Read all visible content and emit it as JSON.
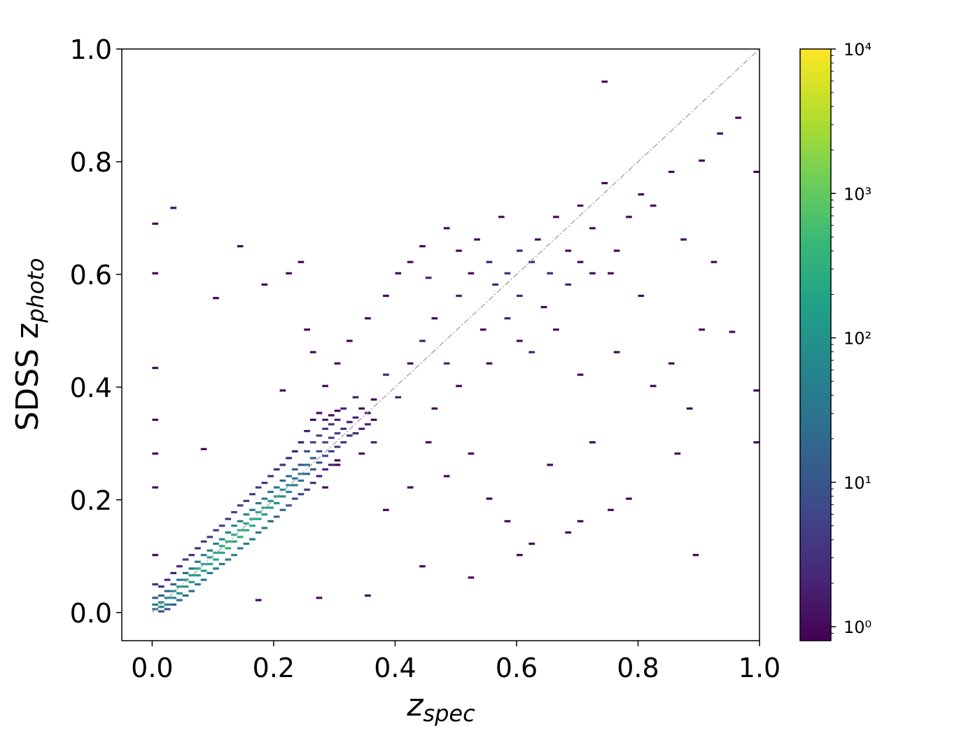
{
  "chart_data": {
    "type": "hist2d",
    "xlabel": {
      "main": "z",
      "sub": "spec"
    },
    "ylabel": {
      "main": "SDSS z",
      "sub": "photo"
    },
    "xlim": [
      -0.05,
      1.0
    ],
    "ylim": [
      -0.05,
      1.0
    ],
    "xticks": [
      {
        "value": 0,
        "label": "0.0"
      },
      0.2,
      0.4,
      0.6,
      0.8,
      {
        "value": 1,
        "label": "1.0"
      }
    ],
    "yticks": [
      {
        "value": 0,
        "label": "0.0"
      },
      0.2,
      0.4,
      0.6,
      0.8,
      {
        "value": 1,
        "label": "1.0"
      }
    ],
    "bin_width": [
      0.01,
      0.004
    ],
    "log_color": true,
    "clim": [
      0.8,
      10000
    ],
    "cticks": [
      {
        "value": 1,
        "label": "10⁰"
      },
      {
        "value": 10,
        "label": "10¹"
      },
      {
        "value": 100,
        "label": "10²"
      },
      {
        "value": 1000,
        "label": "10³"
      },
      {
        "value": 10000,
        "label": "10⁴"
      }
    ],
    "colormap": [
      "#440154",
      "#482878",
      "#3e4989",
      "#31688e",
      "#26828e",
      "#1f9e89",
      "#35b779",
      "#6ece58",
      "#b5de2b",
      "#fde725"
    ],
    "diagonal": {
      "from": [
        0,
        0
      ],
      "to": [
        1,
        1
      ],
      "color": "#999999"
    },
    "cells": [
      [
        0,
        0.004,
        30
      ],
      [
        0,
        0.012,
        40
      ],
      [
        0,
        0.024,
        12
      ],
      [
        0,
        0.048,
        3
      ],
      [
        0,
        0.1,
        1
      ],
      [
        0.01,
        0.008,
        50
      ],
      [
        0.01,
        0.016,
        60
      ],
      [
        0.01,
        0.028,
        15
      ],
      [
        0.01,
        0.044,
        3
      ],
      [
        0.01,
        0,
        8
      ],
      [
        0.02,
        0.012,
        60
      ],
      [
        0.02,
        0.024,
        80
      ],
      [
        0.02,
        0.036,
        20
      ],
      [
        0.02,
        0.056,
        2
      ],
      [
        0.02,
        0.004,
        10
      ],
      [
        0.03,
        0.024,
        80
      ],
      [
        0.03,
        0.036,
        90
      ],
      [
        0.03,
        0.048,
        20
      ],
      [
        0.03,
        0.012,
        15
      ],
      [
        0.03,
        0.068,
        2
      ],
      [
        0.04,
        0.032,
        100
      ],
      [
        0.04,
        0.044,
        110
      ],
      [
        0.04,
        0.056,
        25
      ],
      [
        0.04,
        0.02,
        20
      ],
      [
        0.04,
        0.08,
        2
      ],
      [
        0.05,
        0.044,
        120
      ],
      [
        0.05,
        0.056,
        130
      ],
      [
        0.05,
        0.068,
        30
      ],
      [
        0.05,
        0.028,
        20
      ],
      [
        0.05,
        0.092,
        3
      ],
      [
        0.06,
        0.052,
        140
      ],
      [
        0.06,
        0.064,
        150
      ],
      [
        0.06,
        0.076,
        35
      ],
      [
        0.06,
        0.036,
        25
      ],
      [
        0.06,
        0.1,
        3
      ],
      [
        0.07,
        0.064,
        160
      ],
      [
        0.07,
        0.076,
        170
      ],
      [
        0.07,
        0.088,
        40
      ],
      [
        0.07,
        0.048,
        30
      ],
      [
        0.07,
        0.112,
        3
      ],
      [
        0.08,
        0.072,
        180
      ],
      [
        0.08,
        0.084,
        200
      ],
      [
        0.08,
        0.1,
        45
      ],
      [
        0.08,
        0.056,
        30
      ],
      [
        0.08,
        0.124,
        4
      ],
      [
        0.09,
        0.084,
        200
      ],
      [
        0.09,
        0.096,
        220
      ],
      [
        0.09,
        0.108,
        50
      ],
      [
        0.09,
        0.068,
        35
      ],
      [
        0.09,
        0.132,
        4
      ],
      [
        0.1,
        0.092,
        220
      ],
      [
        0.1,
        0.104,
        250
      ],
      [
        0.1,
        0.12,
        50
      ],
      [
        0.1,
        0.076,
        40
      ],
      [
        0.1,
        0.144,
        5
      ],
      [
        0.11,
        0.104,
        240
      ],
      [
        0.11,
        0.116,
        260
      ],
      [
        0.11,
        0.128,
        60
      ],
      [
        0.11,
        0.084,
        40
      ],
      [
        0.11,
        0.152,
        5
      ],
      [
        0.12,
        0.112,
        250
      ],
      [
        0.12,
        0.124,
        280
      ],
      [
        0.12,
        0.14,
        60
      ],
      [
        0.12,
        0.092,
        45
      ],
      [
        0.12,
        0.164,
        5
      ],
      [
        0.13,
        0.124,
        260
      ],
      [
        0.13,
        0.136,
        290
      ],
      [
        0.13,
        0.152,
        60
      ],
      [
        0.13,
        0.1,
        45
      ],
      [
        0.13,
        0.176,
        5
      ],
      [
        0.14,
        0.132,
        270
      ],
      [
        0.14,
        0.144,
        300
      ],
      [
        0.14,
        0.16,
        60
      ],
      [
        0.14,
        0.112,
        45
      ],
      [
        0.14,
        0.188,
        5
      ],
      [
        0.15,
        0.144,
        260
      ],
      [
        0.15,
        0.156,
        280
      ],
      [
        0.15,
        0.172,
        55
      ],
      [
        0.15,
        0.12,
        40
      ],
      [
        0.15,
        0.196,
        5
      ],
      [
        0.16,
        0.152,
        240
      ],
      [
        0.16,
        0.164,
        260
      ],
      [
        0.16,
        0.18,
        50
      ],
      [
        0.16,
        0.128,
        40
      ],
      [
        0.16,
        0.208,
        4
      ],
      [
        0.17,
        0.164,
        220
      ],
      [
        0.17,
        0.176,
        230
      ],
      [
        0.17,
        0.192,
        45
      ],
      [
        0.17,
        0.14,
        35
      ],
      [
        0.17,
        0.22,
        4
      ],
      [
        0.18,
        0.172,
        180
      ],
      [
        0.18,
        0.184,
        200
      ],
      [
        0.18,
        0.2,
        40
      ],
      [
        0.18,
        0.148,
        30
      ],
      [
        0.18,
        0.228,
        4
      ],
      [
        0.19,
        0.184,
        150
      ],
      [
        0.19,
        0.196,
        160
      ],
      [
        0.19,
        0.212,
        35
      ],
      [
        0.19,
        0.16,
        25
      ],
      [
        0.19,
        0.24,
        3
      ],
      [
        0.2,
        0.192,
        120
      ],
      [
        0.2,
        0.204,
        130
      ],
      [
        0.2,
        0.22,
        30
      ],
      [
        0.2,
        0.168,
        20
      ],
      [
        0.2,
        0.252,
        3
      ],
      [
        0.21,
        0.204,
        90
      ],
      [
        0.21,
        0.216,
        100
      ],
      [
        0.21,
        0.232,
        25
      ],
      [
        0.21,
        0.18,
        15
      ],
      [
        0.21,
        0.26,
        3
      ],
      [
        0.22,
        0.212,
        60
      ],
      [
        0.22,
        0.224,
        70
      ],
      [
        0.22,
        0.24,
        20
      ],
      [
        0.22,
        0.188,
        10
      ],
      [
        0.22,
        0.272,
        2
      ],
      [
        0.23,
        0.224,
        40
      ],
      [
        0.23,
        0.236,
        45
      ],
      [
        0.23,
        0.252,
        15
      ],
      [
        0.23,
        0.2,
        8
      ],
      [
        0.23,
        0.284,
        2
      ],
      [
        0.24,
        0.232,
        25
      ],
      [
        0.24,
        0.244,
        30
      ],
      [
        0.24,
        0.26,
        10
      ],
      [
        0.24,
        0.208,
        6
      ],
      [
        0.24,
        0.3,
        2
      ],
      [
        0.25,
        0.244,
        15
      ],
      [
        0.25,
        0.26,
        20
      ],
      [
        0.25,
        0.284,
        8
      ],
      [
        0.25,
        0.216,
        4
      ],
      [
        0.25,
        0.32,
        2
      ],
      [
        0.26,
        0.252,
        10
      ],
      [
        0.26,
        0.272,
        12
      ],
      [
        0.26,
        0.3,
        6
      ],
      [
        0.26,
        0.228,
        3
      ],
      [
        0.26,
        0.34,
        1
      ],
      [
        0.27,
        0.264,
        8
      ],
      [
        0.27,
        0.284,
        10
      ],
      [
        0.27,
        0.312,
        5
      ],
      [
        0.27,
        0.24,
        2
      ],
      [
        0.27,
        0.352,
        1
      ],
      [
        0.28,
        0.276,
        6
      ],
      [
        0.28,
        0.3,
        8
      ],
      [
        0.28,
        0.324,
        4
      ],
      [
        0.28,
        0.252,
        2
      ],
      [
        0.28,
        0.34,
        2
      ],
      [
        0.29,
        0.284,
        5
      ],
      [
        0.29,
        0.308,
        6
      ],
      [
        0.29,
        0.332,
        3
      ],
      [
        0.29,
        0.26,
        2
      ],
      [
        0.29,
        0.348,
        1
      ],
      [
        0.3,
        0.292,
        4
      ],
      [
        0.3,
        0.316,
        5
      ],
      [
        0.3,
        0.34,
        2
      ],
      [
        0.3,
        0.268,
        1
      ],
      [
        0.3,
        0.356,
        1
      ],
      [
        0.31,
        0.3,
        3
      ],
      [
        0.31,
        0.324,
        3
      ],
      [
        0.32,
        0.312,
        3
      ],
      [
        0.32,
        0.336,
        2
      ],
      [
        0.33,
        0.316,
        2
      ],
      [
        0.33,
        0.344,
        2
      ],
      [
        0.34,
        0.324,
        2
      ],
      [
        0.34,
        0.36,
        1
      ],
      [
        0.35,
        0.332,
        2
      ],
      [
        0.35,
        0.352,
        1
      ],
      [
        0.36,
        0.34,
        1
      ],
      [
        0.36,
        0.376,
        1
      ],
      [
        0,
        0.22,
        1
      ],
      [
        0,
        0.28,
        1
      ],
      [
        0,
        0.34,
        1
      ],
      [
        0,
        0.432,
        1
      ],
      [
        0,
        0.6,
        1
      ],
      [
        0,
        0.688,
        1
      ],
      [
        0.03,
        0.716,
        1
      ],
      [
        0.08,
        0.288,
        1
      ],
      [
        0.1,
        0.556,
        1
      ],
      [
        0.14,
        0.648,
        1
      ],
      [
        0.18,
        0.58,
        1
      ],
      [
        0.22,
        0.6,
        1
      ],
      [
        0.24,
        0.62,
        1
      ],
      [
        0.21,
        0.392,
        1
      ],
      [
        0.25,
        0.5,
        1
      ],
      [
        0.26,
        0.46,
        1
      ],
      [
        0.28,
        0.4,
        1
      ],
      [
        0.3,
        0.44,
        1
      ],
      [
        0.32,
        0.48,
        1
      ],
      [
        0.35,
        0.52,
        1
      ],
      [
        0.38,
        0.56,
        1
      ],
      [
        0.4,
        0.6,
        1
      ],
      [
        0.42,
        0.62,
        1
      ],
      [
        0.44,
        0.648,
        1
      ],
      [
        0.45,
        0.592,
        2
      ],
      [
        0.48,
        0.68,
        1
      ],
      [
        0.5,
        0.64,
        1
      ],
      [
        0.5,
        0.56,
        2
      ],
      [
        0.52,
        0.6,
        1
      ],
      [
        0.53,
        0.66,
        1
      ],
      [
        0.55,
        0.62,
        2
      ],
      [
        0.56,
        0.58,
        2
      ],
      [
        0.57,
        0.7,
        1
      ],
      [
        0.58,
        0.6,
        3
      ],
      [
        0.6,
        0.64,
        2
      ],
      [
        0.6,
        0.56,
        2
      ],
      [
        0.62,
        0.62,
        2
      ],
      [
        0.63,
        0.66,
        1
      ],
      [
        0.65,
        0.6,
        2
      ],
      [
        0.66,
        0.7,
        1
      ],
      [
        0.68,
        0.64,
        1
      ],
      [
        0.7,
        0.72,
        1
      ],
      [
        0.72,
        0.68,
        1
      ],
      [
        0.74,
        0.76,
        1
      ],
      [
        0.75,
        0.6,
        1
      ],
      [
        0.78,
        0.7,
        1
      ],
      [
        0.8,
        0.74,
        1
      ],
      [
        0.82,
        0.72,
        1
      ],
      [
        0.85,
        0.78,
        1
      ],
      [
        0.87,
        0.66,
        1
      ],
      [
        0.9,
        0.8,
        1
      ],
      [
        0.93,
        0.848,
        1
      ],
      [
        0.96,
        0.876,
        1
      ],
      [
        0.99,
        0.78,
        1
      ],
      [
        0.74,
        0.94,
        1
      ],
      [
        0.92,
        0.62,
        1
      ],
      [
        0.95,
        0.496,
        1
      ],
      [
        0.99,
        0.392,
        1
      ],
      [
        0.99,
        0.3,
        1
      ],
      [
        0.86,
        0.28,
        1
      ],
      [
        0.89,
        0.1,
        1
      ],
      [
        0.75,
        0.18,
        1
      ],
      [
        0.7,
        0.16,
        1
      ],
      [
        0.6,
        0.1,
        1
      ],
      [
        0.52,
        0.06,
        1
      ],
      [
        0.44,
        0.08,
        1
      ],
      [
        0.35,
        0.028,
        1
      ],
      [
        0.27,
        0.024,
        1
      ],
      [
        0.17,
        0.02,
        1
      ],
      [
        0.38,
        0.18,
        1
      ],
      [
        0.42,
        0.22,
        1
      ],
      [
        0.45,
        0.3,
        1
      ],
      [
        0.48,
        0.24,
        1
      ],
      [
        0.52,
        0.28,
        1
      ],
      [
        0.55,
        0.2,
        1
      ],
      [
        0.58,
        0.16,
        1
      ],
      [
        0.62,
        0.12,
        1
      ],
      [
        0.65,
        0.26,
        1
      ],
      [
        0.68,
        0.14,
        1
      ],
      [
        0.72,
        0.3,
        1
      ],
      [
        0.78,
        0.2,
        1
      ],
      [
        0.82,
        0.4,
        1
      ],
      [
        0.85,
        0.44,
        1
      ],
      [
        0.88,
        0.36,
        1
      ],
      [
        0.9,
        0.5,
        1
      ],
      [
        0.8,
        0.56,
        1
      ],
      [
        0.76,
        0.46,
        1
      ],
      [
        0.7,
        0.42,
        1
      ],
      [
        0.66,
        0.5,
        1
      ],
      [
        0.62,
        0.46,
        2
      ],
      [
        0.58,
        0.52,
        2
      ],
      [
        0.54,
        0.5,
        1
      ],
      [
        0.48,
        0.44,
        2
      ],
      [
        0.46,
        0.52,
        1
      ],
      [
        0.44,
        0.48,
        2
      ],
      [
        0.42,
        0.44,
        1
      ],
      [
        0.4,
        0.38,
        2
      ],
      [
        0.38,
        0.42,
        2
      ],
      [
        0.36,
        0.3,
        2
      ],
      [
        0.34,
        0.28,
        1
      ],
      [
        0.33,
        0.38,
        2
      ],
      [
        0.31,
        0.36,
        2
      ],
      [
        0.3,
        0.26,
        1
      ],
      [
        0.28,
        0.22,
        1
      ],
      [
        0.46,
        0.36,
        1
      ],
      [
        0.5,
        0.4,
        1
      ],
      [
        0.55,
        0.44,
        1
      ],
      [
        0.6,
        0.48,
        1
      ],
      [
        0.64,
        0.54,
        1
      ],
      [
        0.68,
        0.58,
        2
      ],
      [
        0.7,
        0.62,
        1
      ],
      [
        0.72,
        0.6,
        1
      ],
      [
        0.76,
        0.64,
        1
      ]
    ]
  }
}
